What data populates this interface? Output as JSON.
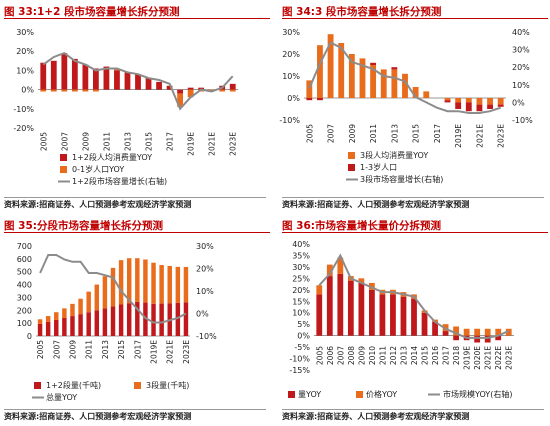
{
  "source_text": "资料来源:招商证券、人口预测参考宏观经济学家预测",
  "colors": {
    "red": "#c0191c",
    "orange": "#e96b1c",
    "gray": "#8c8c8c",
    "title": "#c00000"
  },
  "charts": [
    {
      "title": "图 33:1+2 段市场容量增长拆分预测",
      "left_ticks": [
        "30%",
        "20%",
        "10%",
        "0%",
        "-10%",
        "-20%"
      ],
      "x_labels": [
        "2005",
        "2007",
        "2009",
        "2011",
        "2013",
        "2015",
        "2017",
        "2019E",
        "2021E",
        "2023E"
      ],
      "legend": [
        "1+2段人均消费量YOY",
        "0-1岁人口YOY",
        "1+2段市场容量增长(右轴)"
      ]
    },
    {
      "title": "图 34:3 段市场容量增长拆分预测",
      "left_ticks": [
        "30%",
        "20%",
        "10%",
        "0%",
        "-10%"
      ],
      "right_ticks": [
        "40%",
        "30%",
        "20%",
        "10%",
        "0%",
        "-10%"
      ],
      "x_labels": [
        "2005",
        "2007",
        "2009",
        "2011",
        "2013",
        "2015",
        "2017",
        "2019E",
        "2021E",
        "2023E"
      ],
      "legend": [
        "3段人均消费量YOY",
        "1-3岁人口",
        "3段市场容量增长(右轴)"
      ]
    },
    {
      "title": "图 35:分段市场容量增长拆分预测",
      "left_ticks": [
        "700",
        "600",
        "500",
        "400",
        "300",
        "200",
        "100",
        "0"
      ],
      "right_ticks": [
        "30%",
        "20%",
        "10%",
        "0%",
        "-10%"
      ],
      "x_labels": [
        "2005",
        "2007",
        "2009",
        "2011",
        "2013",
        "2015",
        "2017",
        "2019E",
        "2021E",
        "2023E"
      ],
      "legend": [
        "1+2段量(千吨)",
        "3段量(千吨)",
        "总量YOY"
      ]
    },
    {
      "title": "图 36:市场容量增长量价分拆预测",
      "left_ticks": [
        "40%",
        "35%",
        "30%",
        "25%",
        "20%",
        "15%",
        "10%",
        "5%",
        "0%",
        "-5%",
        "-10%",
        "-15%"
      ],
      "x_labels": [
        "2005",
        "2006",
        "2007",
        "2008",
        "2009",
        "2010",
        "2011",
        "2012",
        "2013",
        "2014",
        "2015",
        "2016",
        "2017",
        "2018",
        "2019E",
        "2020E",
        "2021E",
        "2022E",
        "2023E"
      ],
      "legend": [
        "量YOY",
        "价格YOY",
        "市场规模YOY(右轴)"
      ]
    }
  ],
  "chart_data": [
    {
      "type": "bar",
      "title": "1+2 段市场容量增长拆分预测",
      "categories": [
        "2005",
        "2006",
        "2007",
        "2008",
        "2009",
        "2010",
        "2011",
        "2012",
        "2013",
        "2014",
        "2015",
        "2016",
        "2017",
        "2018",
        "2019E",
        "2020E",
        "2021E",
        "2022E",
        "2023E"
      ],
      "ylim": [
        -20,
        30
      ],
      "series": [
        {
          "name": "1+2段人均消费量YOY",
          "values": [
            14,
            15,
            19,
            16,
            13,
            11,
            12,
            10,
            9,
            8,
            6,
            4,
            2,
            -2,
            1,
            1,
            0,
            2,
            3
          ]
        },
        {
          "name": "0-1岁人口YOY",
          "values": [
            -1,
            -1,
            -1,
            -1,
            -1,
            -1,
            0,
            1,
            0,
            0,
            0,
            0,
            0,
            -7,
            -4,
            -1,
            -1,
            -1,
            -1
          ]
        },
        {
          "name": "1+2段市场容量增长(右轴)",
          "values": [
            13,
            17,
            19,
            15,
            13,
            10,
            11,
            11,
            9,
            8,
            6,
            5,
            3,
            -10,
            -4,
            0,
            -1,
            1,
            7
          ]
        }
      ]
    },
    {
      "type": "bar",
      "title": "3 段市场容量增长拆分预测",
      "categories": [
        "2005",
        "2006",
        "2007",
        "2008",
        "2009",
        "2010",
        "2011",
        "2012",
        "2013",
        "2014",
        "2015",
        "2016",
        "2017",
        "2018",
        "2019E",
        "2020E",
        "2021E",
        "2022E",
        "2023E"
      ],
      "ylim": [
        -10,
        30
      ],
      "y2lim": [
        -10,
        40
      ],
      "series": [
        {
          "name": "3段人均消费量YOY",
          "values": [
            8,
            24,
            29,
            25,
            20,
            18,
            15,
            13,
            13,
            11,
            5,
            3,
            0,
            -1,
            -2,
            -2,
            -3,
            -3,
            -3
          ]
        },
        {
          "name": "1-3岁人口",
          "values": [
            -1,
            -1,
            0,
            0,
            0,
            0,
            1,
            0,
            1,
            0,
            0,
            0,
            0,
            -1,
            -3,
            -4,
            -3,
            -2,
            -1
          ]
        },
        {
          "name": "3段市场容量增长(右轴)",
          "values": [
            8,
            22,
            34,
            31,
            23,
            21,
            19,
            15,
            14,
            12,
            3,
            0,
            -3,
            -5,
            -5,
            -6,
            -6,
            -5,
            -3
          ]
        }
      ]
    },
    {
      "type": "bar",
      "title": "分段市场容量增长拆分预测",
      "categories": [
        "2005",
        "2006",
        "2007",
        "2008",
        "2009",
        "2010",
        "2011",
        "2012",
        "2013",
        "2014",
        "2015",
        "2016",
        "2017",
        "2018",
        "2019E",
        "2020E",
        "2021E",
        "2022E",
        "2023E"
      ],
      "ylim": [
        0,
        700
      ],
      "y2lim": [
        -10,
        30
      ],
      "series": [
        {
          "name": "1+2段量(千吨)",
          "values": [
            95,
            110,
            125,
            140,
            155,
            170,
            185,
            200,
            215,
            230,
            245,
            255,
            265,
            260,
            250,
            252,
            255,
            258,
            262
          ]
        },
        {
          "name": "3段量(千吨)",
          "values": [
            35,
            45,
            60,
            75,
            95,
            120,
            160,
            200,
            250,
            300,
            345,
            350,
            340,
            335,
            320,
            300,
            290,
            280,
            275
          ]
        },
        {
          "name": "总量YOY",
          "values": [
            18,
            26,
            26,
            24,
            23,
            23,
            18,
            18,
            17,
            16,
            10,
            6,
            2,
            -2,
            -4,
            -4,
            -3,
            -2,
            0
          ]
        }
      ]
    },
    {
      "type": "bar",
      "title": "市场容量增长量价分拆预测",
      "categories": [
        "2005",
        "2006",
        "2007",
        "2008",
        "2009",
        "2010",
        "2011",
        "2012",
        "2013",
        "2014",
        "2015",
        "2016",
        "2017",
        "2018",
        "2019E",
        "2020E",
        "2021E",
        "2022E",
        "2023E"
      ],
      "ylim": [
        -15,
        40
      ],
      "series": [
        {
          "name": "量YOY",
          "values": [
            18,
            26,
            27,
            24,
            23,
            20,
            18,
            18,
            17,
            16,
            10,
            6,
            2,
            -2,
            -2,
            -3,
            -3,
            -2,
            0
          ]
        },
        {
          "name": "价格YOY",
          "values": [
            4,
            5,
            7,
            2,
            2,
            3,
            2,
            2,
            2,
            2,
            1,
            1,
            3,
            4,
            3,
            3,
            3,
            3,
            3
          ]
        },
        {
          "name": "市场规模YOY(右轴)",
          "values": [
            22,
            27,
            35,
            25,
            23,
            21,
            19,
            19,
            18,
            17,
            11,
            6,
            3,
            1,
            -1,
            -1,
            -1,
            0,
            2
          ]
        }
      ]
    }
  ]
}
